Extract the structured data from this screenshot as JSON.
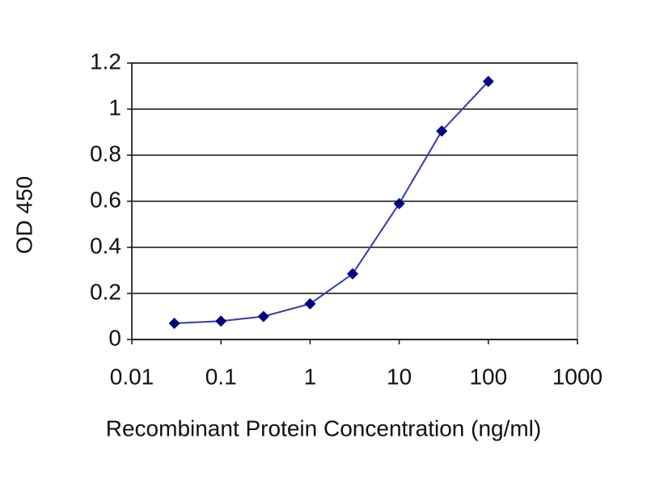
{
  "chart_data": {
    "type": "line",
    "x_label": "Recombinant Protein Concentration (ng/ml)",
    "y_label": "OD 450",
    "x": [
      0.03,
      0.1,
      0.3,
      1,
      3,
      10,
      30,
      100
    ],
    "values": [
      0.07,
      0.08,
      0.1,
      0.155,
      0.285,
      0.59,
      0.905,
      1.12
    ],
    "color": "#000080",
    "line_color": "#3838b0",
    "xlog": true,
    "xlim": [
      0.01,
      1000
    ],
    "xticks": [
      0.01,
      0.1,
      1,
      10,
      100,
      1000
    ],
    "ylim": [
      0,
      1.2
    ],
    "yticks": [
      0,
      0.2,
      0.4,
      0.6,
      0.8,
      1,
      1.2
    ],
    "grid": true
  }
}
